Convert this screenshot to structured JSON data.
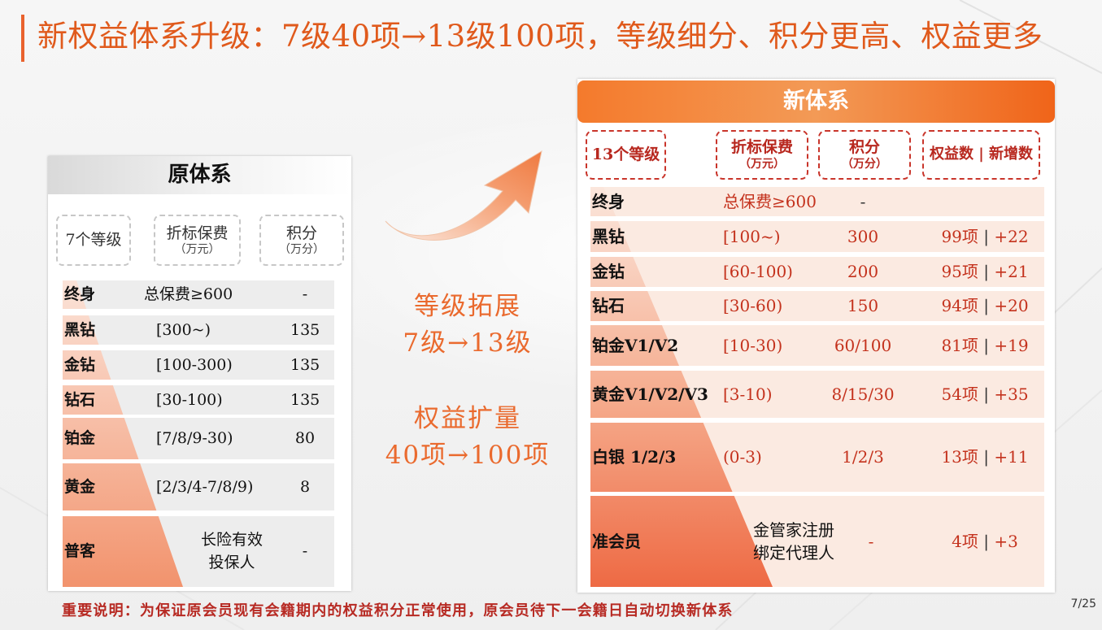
{
  "title": "新权益体系升级：7级40项→13级100项，等级细分、积分更高、权益更多",
  "old_system": {
    "header": "原体系",
    "col_level": "7个等级",
    "col_fee": {
      "main": "折标保费",
      "unit": "（万元）"
    },
    "col_points": {
      "main": "积分",
      "unit": "（万分）"
    },
    "rows": [
      {
        "level": "终身",
        "fee": "总保费≥600",
        "points": "-"
      },
      {
        "level": "黑钻",
        "fee": "[300~)",
        "points": "135"
      },
      {
        "level": "金钻",
        "fee": "[100-300)",
        "points": "135"
      },
      {
        "level": "钻石",
        "fee": "[30-100)",
        "points": "135"
      },
      {
        "level": "铂金",
        "fee": "[7/8/9-30)",
        "points": "80"
      },
      {
        "level": "黄金",
        "fee": "[2/3/4-7/8/9)",
        "points": "8"
      },
      {
        "level": "普客",
        "fee_line1": "长险有效",
        "fee_line2": "投保人",
        "points": "-"
      }
    ]
  },
  "middle": {
    "line1": "等级拓展",
    "line2": "7级→13级",
    "line3": "权益扩量",
    "line4": "40项→100项"
  },
  "new_system": {
    "header": "新体系",
    "col_level": "13个等级",
    "col_fee": {
      "main": "折标保费",
      "unit": "（万元）"
    },
    "col_points": {
      "main": "积分",
      "unit": "（万分）"
    },
    "col_benefits": "权益数 | 新增数",
    "rows": [
      {
        "level": "终身",
        "fee": "总保费≥600",
        "points": "-",
        "benefits": "",
        "added": ""
      },
      {
        "level": "黑钻",
        "fee": "[100~)",
        "points": "300",
        "benefits": "99项",
        "added": "+22"
      },
      {
        "level": "金钻",
        "fee": "[60-100)",
        "points": "200",
        "benefits": "95项",
        "added": "+21"
      },
      {
        "level": "钻石",
        "fee": "[30-60)",
        "points": "150",
        "benefits": "94项",
        "added": "+20"
      },
      {
        "level": "铂金V1/V2",
        "fee": "[10-30)",
        "points": "60/100",
        "benefits": "81项",
        "added": "+19"
      },
      {
        "level": "黄金V1/V2/V3",
        "fee": "[3-10)",
        "points": "8/15/30",
        "benefits": "54项",
        "added": "+35"
      },
      {
        "level": "白银 1/2/3",
        "fee": "(0-3)",
        "points": "1/2/3",
        "benefits": "13项",
        "added": "+11"
      },
      {
        "level": "准会员",
        "fee_line1": "金管家注册",
        "fee_line2": "绑定代理人",
        "points": "-",
        "benefits": "4项",
        "added": "+3"
      }
    ]
  },
  "footer_note": "重要说明：为保证原会员现有会籍期内的权益积分正常使用，原会员待下一会籍日自动切换新体系",
  "page_number": "7/25",
  "colors": {
    "accent": "#e9622e",
    "pyramid_old": "#f2a07f",
    "pyramid_new": "#ef6d47",
    "note_red": "#b72a23"
  }
}
